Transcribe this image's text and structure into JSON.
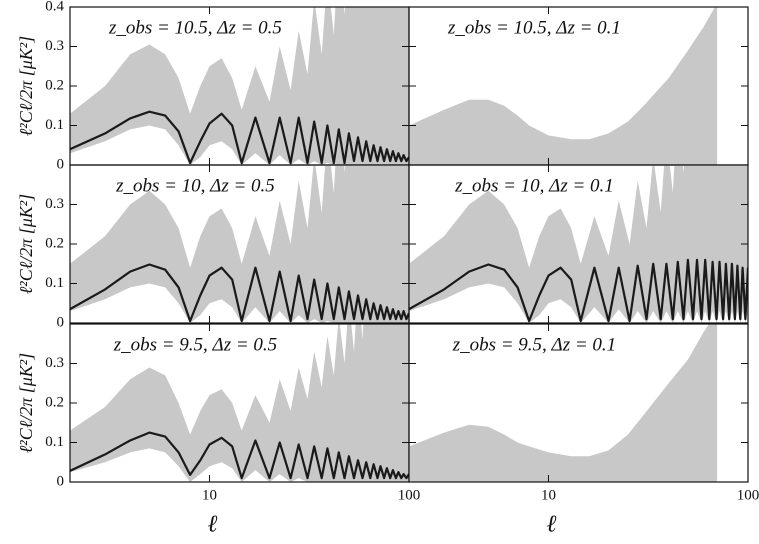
{
  "chart_data": [
    {
      "type": "line",
      "annotation": "z_obs = 10.5,  Δz = 0.5",
      "ylabel": "ℓ²Cℓ/2π  [μK²]",
      "xscale": "log",
      "xlim": [
        2,
        100
      ],
      "ylim": [
        0,
        0.4
      ],
      "xticks": [
        10,
        100
      ],
      "yticks": [
        0,
        0.1,
        0.2,
        0.3,
        0.4
      ],
      "color": "#1a1a1a",
      "band_color": "#c8c8c8",
      "x": [
        2,
        3,
        4,
        5,
        6,
        7,
        8,
        9,
        10,
        11.5,
        13,
        14.5,
        17,
        20,
        22.5,
        25.5,
        28,
        31,
        33.5,
        36.5,
        39,
        42,
        44.5,
        47.5,
        50,
        53,
        55.5,
        58.5,
        61,
        64,
        66.5,
        69.5,
        72,
        75,
        77.5,
        80.5,
        83,
        86,
        88.5,
        91.5,
        94,
        97,
        100
      ],
      "values": [
        0.04,
        0.08,
        0.118,
        0.135,
        0.125,
        0.085,
        0.005,
        0.06,
        0.105,
        0.13,
        0.1,
        0.005,
        0.12,
        0.005,
        0.12,
        0.005,
        0.12,
        0.005,
        0.11,
        0.005,
        0.1,
        0.005,
        0.09,
        0.005,
        0.08,
        0.01,
        0.07,
        0.01,
        0.06,
        0.01,
        0.05,
        0.01,
        0.045,
        0.01,
        0.04,
        0.01,
        0.035,
        0.01,
        0.03,
        0.01,
        0.025,
        0.01,
        0.02
      ],
      "upper": [
        0.13,
        0.2,
        0.28,
        0.305,
        0.28,
        0.22,
        0.13,
        0.2,
        0.25,
        0.27,
        0.22,
        0.14,
        0.25,
        0.16,
        0.3,
        0.19,
        0.34,
        0.23,
        0.42,
        0.28,
        0.48,
        0.33,
        0.55,
        0.38,
        0.6,
        0.42,
        0.65,
        0.46,
        0.7,
        0.5,
        0.75,
        0.55,
        0.8,
        0.6,
        0.85,
        0.65,
        0.9,
        0.7,
        0.95,
        0.75,
        1,
        0.8,
        1
      ],
      "lower": [
        0.03,
        0.06,
        0.09,
        0.1,
        0.09,
        0.05,
        0,
        0.02,
        0.05,
        0.06,
        0.04,
        0,
        0.03,
        0,
        0.025,
        0,
        0.015,
        0,
        0.01,
        0,
        0.005,
        0,
        0,
        0,
        0,
        0,
        0,
        0,
        0,
        0,
        0,
        0,
        0,
        0,
        0,
        0,
        0,
        0,
        0,
        0,
        0,
        0,
        0
      ]
    },
    {
      "type": "area",
      "annotation": "z_obs = 10.5,  Δz = 0.1",
      "xscale": "log",
      "xlim": [
        2,
        100
      ],
      "ylim": [
        0,
        0.4
      ],
      "xticks": [
        10,
        100
      ],
      "yticks": [
        0,
        0.1,
        0.2,
        0.3,
        0.4
      ],
      "band_color": "#c8c8c8",
      "x": [
        2,
        3,
        4,
        5,
        6,
        7,
        8,
        10,
        13,
        16,
        20,
        25,
        30,
        40,
        50,
        60,
        70
      ],
      "upper": [
        0.1,
        0.14,
        0.165,
        0.165,
        0.15,
        0.125,
        0.1,
        0.075,
        0.065,
        0.065,
        0.08,
        0.11,
        0.15,
        0.22,
        0.29,
        0.35,
        0.41
      ]
    },
    {
      "type": "line",
      "annotation": "z_obs = 10,  Δz = 0.5",
      "ylabel": "ℓ²Cℓ/2π  [μK²]",
      "xscale": "log",
      "xlim": [
        2,
        100
      ],
      "ylim": [
        0,
        0.4
      ],
      "xticks": [
        10,
        100
      ],
      "yticks": [
        0,
        0.1,
        0.2,
        0.3
      ],
      "color": "#1a1a1a",
      "band_color": "#c8c8c8",
      "x": [
        2,
        3,
        4,
        5,
        6,
        7,
        8,
        9,
        10,
        11.5,
        13,
        14.5,
        17,
        20,
        22.5,
        25.5,
        28,
        31,
        33.5,
        36.5,
        39,
        42,
        44.5,
        47.5,
        50,
        53,
        55.5,
        58.5,
        61,
        64,
        66.5,
        69.5,
        72,
        75,
        77.5,
        80.5,
        83,
        86,
        88.5,
        91.5,
        94,
        97,
        100
      ],
      "values": [
        0.035,
        0.085,
        0.13,
        0.148,
        0.135,
        0.09,
        0.005,
        0.07,
        0.12,
        0.14,
        0.11,
        0.005,
        0.14,
        0.005,
        0.13,
        0.005,
        0.12,
        0.01,
        0.11,
        0.01,
        0.1,
        0.01,
        0.09,
        0.01,
        0.08,
        0.01,
        0.07,
        0.01,
        0.06,
        0.01,
        0.05,
        0.01,
        0.045,
        0.01,
        0.04,
        0.01,
        0.035,
        0.01,
        0.03,
        0.01,
        0.03,
        0.01,
        0.025
      ],
      "upper": [
        0.15,
        0.22,
        0.3,
        0.335,
        0.3,
        0.24,
        0.14,
        0.22,
        0.27,
        0.29,
        0.24,
        0.15,
        0.27,
        0.17,
        0.31,
        0.2,
        0.36,
        0.24,
        0.42,
        0.28,
        0.48,
        0.33,
        0.55,
        0.38,
        0.6,
        0.42,
        0.65,
        0.46,
        0.7,
        0.5,
        0.75,
        0.55,
        0.8,
        0.6,
        0.85,
        0.65,
        0.9,
        0.7,
        0.95,
        0.75,
        1,
        0.8,
        1
      ],
      "lower": [
        0.03,
        0.06,
        0.09,
        0.1,
        0.09,
        0.05,
        0,
        0.02,
        0.05,
        0.06,
        0.04,
        0,
        0.04,
        0,
        0.03,
        0,
        0.02,
        0,
        0.01,
        0,
        0.005,
        0,
        0,
        0,
        0,
        0,
        0,
        0,
        0,
        0,
        0,
        0,
        0,
        0,
        0,
        0,
        0,
        0,
        0,
        0,
        0,
        0,
        0
      ]
    },
    {
      "type": "line",
      "annotation": "z_obs = 10,  Δz = 0.1",
      "xscale": "log",
      "xlim": [
        2,
        100
      ],
      "ylim": [
        0,
        0.4
      ],
      "xticks": [
        10,
        100
      ],
      "yticks": [
        0,
        0.1,
        0.2,
        0.3
      ],
      "color": "#1a1a1a",
      "band_color": "#c8c8c8",
      "x": [
        2,
        3,
        4,
        5,
        6,
        7,
        8,
        9,
        10,
        11.5,
        13,
        14.5,
        17,
        20,
        22.5,
        25.5,
        28,
        31,
        33.5,
        36.5,
        39,
        42,
        44.5,
        47.5,
        50,
        53,
        55.5,
        58.5,
        61,
        64,
        66.5,
        69.5,
        72,
        75,
        77.5,
        80.5,
        83,
        86,
        88.5,
        91.5,
        94,
        97,
        100
      ],
      "values": [
        0.035,
        0.085,
        0.13,
        0.148,
        0.135,
        0.09,
        0.005,
        0.07,
        0.12,
        0.14,
        0.11,
        0.005,
        0.14,
        0.005,
        0.14,
        0.005,
        0.145,
        0.01,
        0.15,
        0.01,
        0.15,
        0.01,
        0.155,
        0.01,
        0.16,
        0.01,
        0.16,
        0.01,
        0.16,
        0.01,
        0.155,
        0.01,
        0.155,
        0.01,
        0.15,
        0.01,
        0.15,
        0.01,
        0.145,
        0.01,
        0.14,
        0.01,
        0.14
      ],
      "upper": [
        0.15,
        0.22,
        0.3,
        0.335,
        0.3,
        0.24,
        0.14,
        0.22,
        0.27,
        0.29,
        0.24,
        0.15,
        0.27,
        0.17,
        0.31,
        0.2,
        0.36,
        0.24,
        0.42,
        0.28,
        0.48,
        0.33,
        0.55,
        0.38,
        0.6,
        0.42,
        0.65,
        0.46,
        0.7,
        0.5,
        0.75,
        0.55,
        0.8,
        0.6,
        0.85,
        0.65,
        0.9,
        0.7,
        0.95,
        0.75,
        1,
        0.8,
        1
      ],
      "lower": [
        0.03,
        0.06,
        0.09,
        0.1,
        0.09,
        0.05,
        0,
        0.02,
        0.05,
        0.06,
        0.04,
        0,
        0.04,
        0,
        0.035,
        0,
        0.03,
        0,
        0.03,
        0,
        0.03,
        0,
        0.03,
        0,
        0.03,
        0,
        0.03,
        0,
        0.03,
        0,
        0.03,
        0,
        0.03,
        0,
        0.03,
        0,
        0.03,
        0,
        0.03,
        0,
        0.03,
        0,
        0.03
      ]
    },
    {
      "type": "line",
      "annotation": "z_obs = 9.5,  Δz = 0.5",
      "ylabel": "ℓ²Cℓ/2π  [μK²]",
      "xlabel": "ℓ",
      "xscale": "log",
      "xlim": [
        2,
        100
      ],
      "ylim": [
        0,
        0.4
      ],
      "xticks": [
        10,
        100
      ],
      "yticks": [
        0,
        0.1,
        0.2,
        0.3
      ],
      "color": "#1a1a1a",
      "band_color": "#c8c8c8",
      "x": [
        2,
        3,
        4,
        5,
        6,
        7,
        8,
        9,
        10,
        11.5,
        13,
        14.5,
        17,
        20,
        22.5,
        25.5,
        28,
        31,
        33.5,
        36.5,
        39,
        42,
        44.5,
        47.5,
        50,
        53,
        55.5,
        58.5,
        61,
        64,
        66.5,
        69.5,
        72,
        75,
        77.5,
        80.5,
        83,
        86,
        88.5,
        91.5,
        94,
        97,
        100
      ],
      "values": [
        0.028,
        0.07,
        0.105,
        0.125,
        0.115,
        0.075,
        0.018,
        0.055,
        0.095,
        0.112,
        0.09,
        0.01,
        0.105,
        0.01,
        0.1,
        0.01,
        0.095,
        0.01,
        0.09,
        0.01,
        0.085,
        0.01,
        0.075,
        0.01,
        0.065,
        0.01,
        0.055,
        0.01,
        0.05,
        0.01,
        0.045,
        0.01,
        0.04,
        0.01,
        0.035,
        0.01,
        0.03,
        0.01,
        0.025,
        0.01,
        0.02,
        0.01,
        0.02
      ],
      "upper": [
        0.13,
        0.19,
        0.26,
        0.29,
        0.27,
        0.2,
        0.12,
        0.18,
        0.22,
        0.235,
        0.2,
        0.13,
        0.22,
        0.15,
        0.26,
        0.18,
        0.29,
        0.21,
        0.33,
        0.24,
        0.37,
        0.27,
        0.42,
        0.3,
        0.46,
        0.33,
        0.5,
        0.36,
        0.55,
        0.4,
        0.6,
        0.45,
        0.65,
        0.5,
        0.7,
        0.55,
        0.75,
        0.6,
        0.8,
        0.65,
        0.85,
        0.7,
        0.9
      ],
      "lower": [
        0.025,
        0.05,
        0.075,
        0.085,
        0.075,
        0.04,
        0,
        0.02,
        0.04,
        0.05,
        0.035,
        0,
        0.03,
        0,
        0.02,
        0,
        0.01,
        0,
        0,
        0,
        0,
        0,
        0,
        0,
        0,
        0,
        0,
        0,
        0,
        0,
        0,
        0,
        0,
        0,
        0,
        0,
        0,
        0,
        0,
        0,
        0,
        0,
        0
      ]
    },
    {
      "type": "area",
      "annotation": "z_obs = 9.5,  Δz = 0.1",
      "xlabel": "ℓ",
      "xscale": "log",
      "xlim": [
        2,
        100
      ],
      "ylim": [
        0,
        0.4
      ],
      "xticks": [
        10,
        100
      ],
      "yticks": [
        0,
        0.1,
        0.2,
        0.3
      ],
      "band_color": "#c8c8c8",
      "x": [
        2,
        3,
        4,
        5,
        6,
        7,
        8,
        10,
        13,
        16,
        20,
        25,
        30,
        40,
        50,
        60,
        70
      ],
      "upper": [
        0.09,
        0.125,
        0.145,
        0.14,
        0.12,
        0.1,
        0.09,
        0.075,
        0.065,
        0.065,
        0.08,
        0.12,
        0.17,
        0.25,
        0.31,
        0.38,
        0.43
      ]
    }
  ]
}
